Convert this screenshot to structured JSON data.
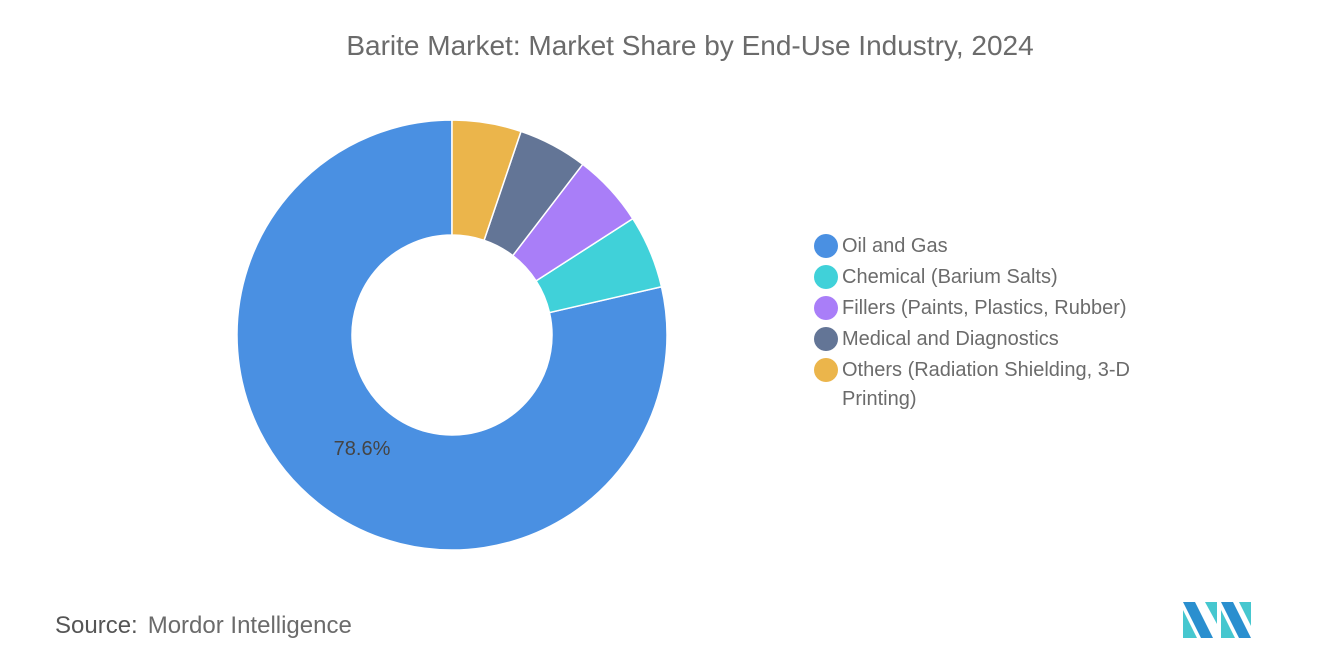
{
  "chart_data": {
    "type": "pie",
    "variant": "donut",
    "title": "Barite Market: Market Share by End-Use Industry, 2024",
    "categories": [
      "Oil and Gas",
      "Chemical (Barium Salts)",
      "Fillers (Paints, Plastics, Rubber)",
      "Medical and Diagnostics",
      "Others (Radiation Shielding, 3-D Printing)"
    ],
    "values": [
      78.6,
      5.5,
      5.5,
      5.2,
      5.2
    ],
    "unit": "%",
    "data_labels": [
      "78.6%",
      "",
      "",
      "",
      ""
    ],
    "colors": [
      "#4a90e2",
      "#40d1d9",
      "#a97ef8",
      "#637596",
      "#ebb54b"
    ],
    "direction": "counterclockwise from top",
    "legend_position": "right"
  },
  "source": {
    "label": "Source:",
    "value": "Mordor Intelligence"
  },
  "logo": {
    "name": "mordor-intelligence-logo"
  }
}
